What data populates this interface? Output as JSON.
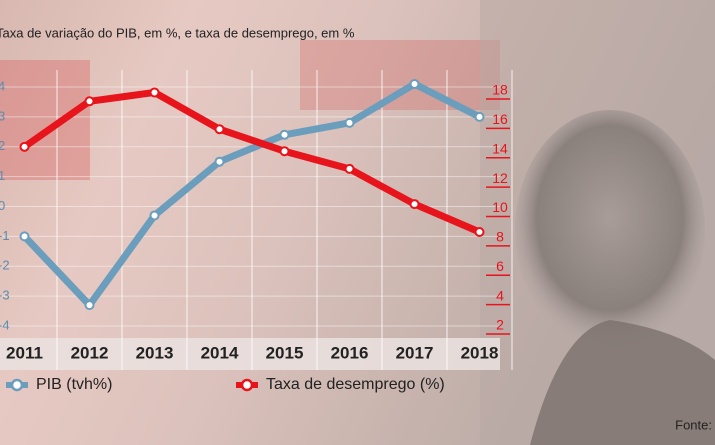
{
  "chart_data": {
    "type": "line",
    "title": "Taxa de variação do PIB, em %, e taxa de desemprego, em %",
    "categories": [
      "2011",
      "2012",
      "2013",
      "2014",
      "2015",
      "2016",
      "2017",
      "2018"
    ],
    "series": [
      {
        "name": "PIB (tvh%)",
        "color": "#6b9dbd",
        "values": [
          -1.0,
          -3.3,
          -0.3,
          1.5,
          2.4,
          2.8,
          4.1,
          3.0
        ]
      },
      {
        "name": "Taxa de desemprego (%)",
        "color": "#e8141c",
        "axis": "y2",
        "values": [
          14.2,
          17.3,
          17.9,
          15.4,
          13.9,
          12.7,
          10.3,
          8.4
        ]
      }
    ],
    "ylim": [
      -4,
      4
    ],
    "yticks": [
      -4,
      -3,
      -2,
      -1,
      0,
      1,
      2,
      3,
      4
    ],
    "y2lim": [
      2,
      18
    ],
    "y2ticks": [
      2,
      4,
      6,
      8,
      10,
      12,
      14,
      16,
      18
    ],
    "grid": true,
    "source": "Fonte:"
  }
}
